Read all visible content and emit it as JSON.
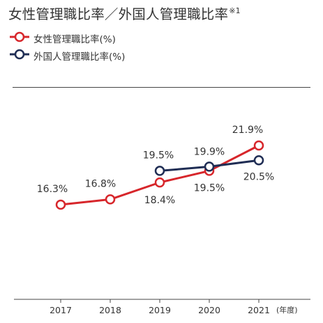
{
  "title": {
    "main": "女性管理職比率／外国人管理職比率",
    "note": "※1"
  },
  "colors": {
    "women": "#d7262b",
    "foreign": "#1f2d54",
    "axis": "#444444"
  },
  "chart_data": {
    "type": "line",
    "x": [
      "2017",
      "2018",
      "2019",
      "2020",
      "2021"
    ],
    "x_unit": "(年度)",
    "ylim": [
      14,
      24
    ],
    "grid": false,
    "legend_position": "top-left",
    "series": [
      {
        "name": "女性管理職比率(%)",
        "color": "#d7262b",
        "values": [
          16.3,
          16.8,
          18.4,
          19.5,
          21.9
        ],
        "labels": [
          "16.3%",
          "16.8%",
          "18.4%",
          "19.5%",
          "21.9%"
        ]
      },
      {
        "name": "外国人管理職比率(%)",
        "color": "#1f2d54",
        "values": [
          null,
          null,
          19.5,
          19.9,
          20.5
        ],
        "labels": [
          "",
          "",
          "19.5%",
          "19.9%",
          "20.5%"
        ]
      }
    ]
  }
}
